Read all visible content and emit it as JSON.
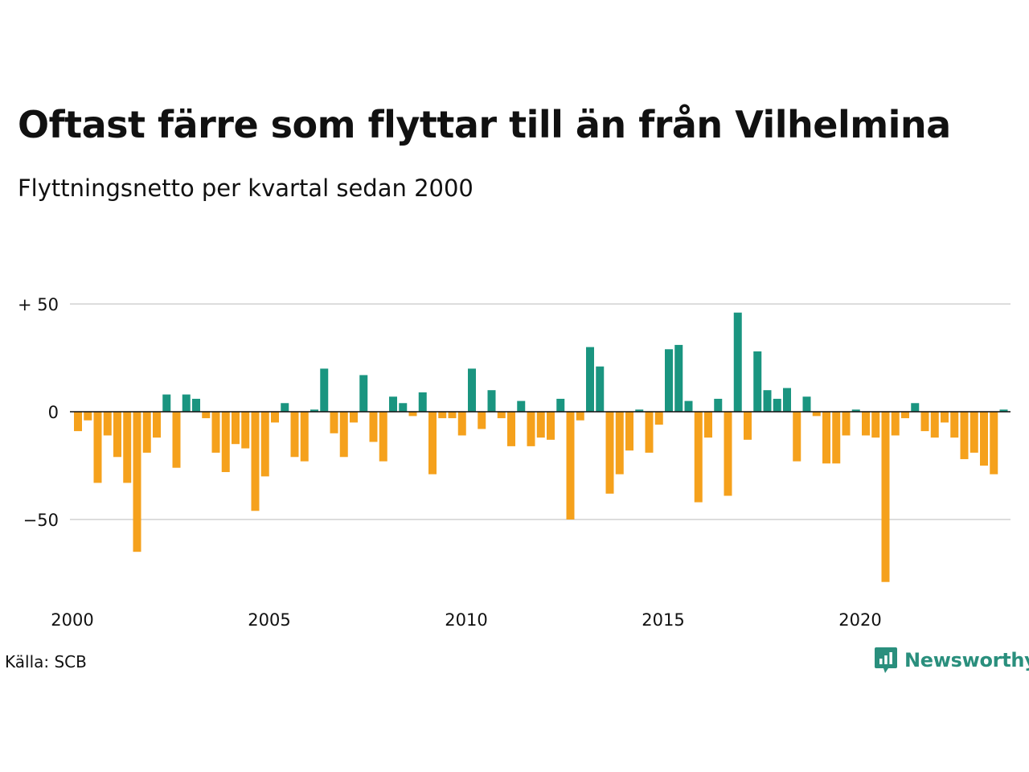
{
  "title": "Oftast färre som flyttar till än från Vilhelmina",
  "subtitle": "Flyttningsnetto per kvartal sedan 2000",
  "source": "Källa: SCB",
  "brand": {
    "name": "Newsworthy",
    "icon": "newsworthy-logo-icon",
    "color": "#2a8f7d"
  },
  "colors": {
    "positive": "#1a9580",
    "negative": "#f5a11c",
    "grid": "#dddddd",
    "zero_line": "#111111"
  },
  "chart_data": {
    "type": "bar",
    "xlabel": "",
    "ylabel": "",
    "ylim": [
      -85,
      55
    ],
    "grid": true,
    "y_ticks": [
      {
        "value": 50,
        "label": "+ 50"
      },
      {
        "value": 0,
        "label": "0"
      },
      {
        "value": -50,
        "label": "−50"
      }
    ],
    "x_ticks": [
      {
        "year": 2000,
        "label": "2000"
      },
      {
        "year": 2005,
        "label": "2005"
      },
      {
        "year": 2010,
        "label": "2010"
      },
      {
        "year": 2015,
        "label": "2015"
      },
      {
        "year": 2020,
        "label": "2020"
      }
    ],
    "start": "2000 Q1",
    "values": [
      -9,
      -4,
      -33,
      -11,
      -21,
      -33,
      -65,
      -19,
      -12,
      8,
      -26,
      8,
      6,
      -3,
      -19,
      -28,
      -15,
      -17,
      -46,
      -30,
      -5,
      4,
      -21,
      -23,
      1,
      20,
      -10,
      -21,
      -5,
      17,
      -14,
      -23,
      7,
      4,
      -2,
      9,
      -29,
      -3,
      -3,
      -11,
      20,
      -8,
      10,
      -3,
      -16,
      5,
      -16,
      -12,
      -13,
      6,
      -50,
      -4,
      30,
      21,
      -38,
      -29,
      -18,
      1,
      -19,
      -6,
      29,
      31,
      5,
      -42,
      -12,
      6,
      -39,
      46,
      -13,
      28,
      10,
      6,
      11,
      -23,
      7,
      -2,
      -24,
      -24,
      -11,
      1,
      -11,
      -12,
      -79,
      -11,
      -3,
      4,
      -9,
      -12,
      -5,
      -12,
      -22,
      -19,
      -25,
      -29,
      1
    ]
  }
}
